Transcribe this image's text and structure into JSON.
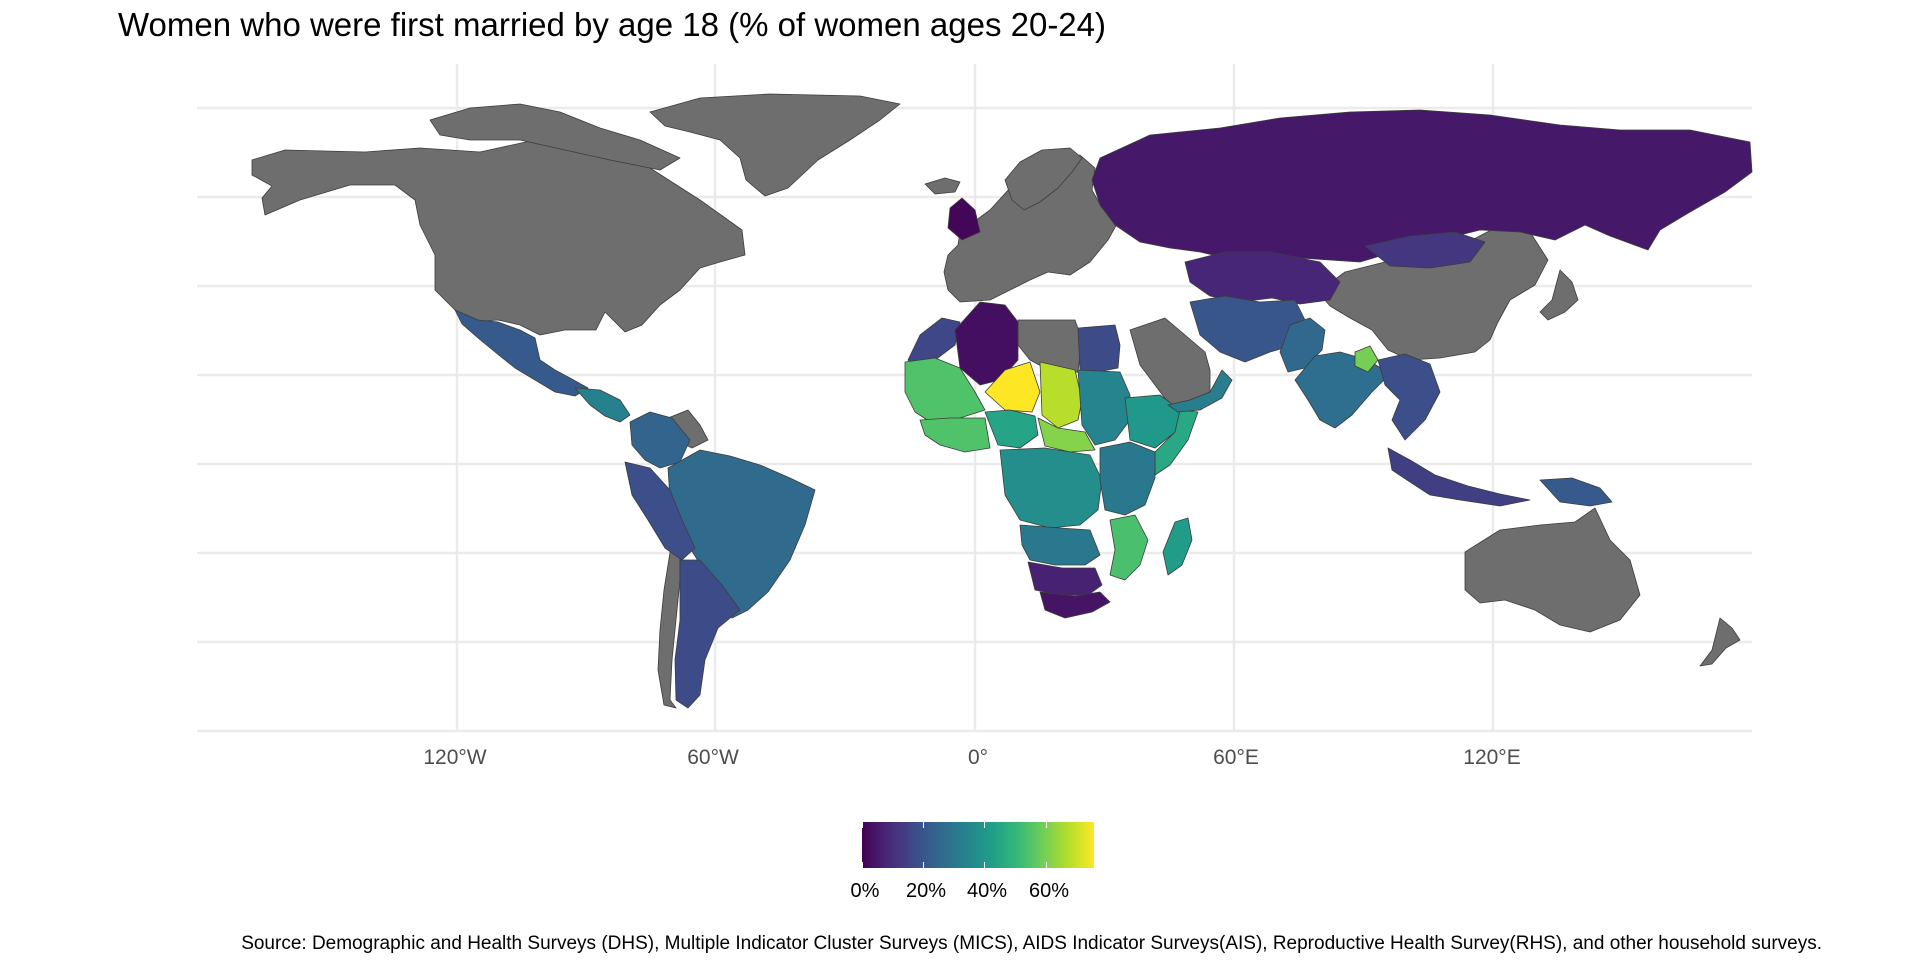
{
  "chart_data": {
    "type": "choropleth-map",
    "title": "Women who were first married by age 18 (% of women ages 20-24)",
    "x_ticks": [
      "120°W",
      "60°W",
      "0°",
      "60°E",
      "120°E"
    ],
    "legend": {
      "labels": [
        "0%",
        "20%",
        "40%",
        "60%"
      ],
      "colormap": "viridis",
      "range": [
        0,
        75
      ]
    },
    "no_data_color": "#6e6e6e",
    "regions": [
      {
        "name": "Mexico",
        "value": 21
      },
      {
        "name": "Central America",
        "value": 33
      },
      {
        "name": "Colombia/Venezuela",
        "value": 24
      },
      {
        "name": "Brazil",
        "value": 26
      },
      {
        "name": "Peru/Bolivia",
        "value": 18
      },
      {
        "name": "Argentina/Paraguay",
        "value": 17
      },
      {
        "name": "Russia",
        "value": 5
      },
      {
        "name": "Central Asia",
        "value": 8
      },
      {
        "name": "Mongolia",
        "value": 12
      },
      {
        "name": "Iran/Afghanistan",
        "value": 20
      },
      {
        "name": "Pakistan",
        "value": 25
      },
      {
        "name": "India",
        "value": 27
      },
      {
        "name": "Bangladesh",
        "value": 59
      },
      {
        "name": "Southeast Asia",
        "value": 18
      },
      {
        "name": "Indonesia",
        "value": 14
      },
      {
        "name": "Papua New Guinea",
        "value": 21
      },
      {
        "name": "Algeria",
        "value": 3
      },
      {
        "name": "Morocco",
        "value": 16
      },
      {
        "name": "Egypt",
        "value": 17
      },
      {
        "name": "Mali",
        "value": 54
      },
      {
        "name": "Niger",
        "value": 76
      },
      {
        "name": "Chad",
        "value": 67
      },
      {
        "name": "Sudan",
        "value": 34
      },
      {
        "name": "Nigeria",
        "value": 44
      },
      {
        "name": "Central African Republic",
        "value": 61
      },
      {
        "name": "Ethiopia",
        "value": 40
      },
      {
        "name": "Somalia",
        "value": 45
      },
      {
        "name": "DR Congo",
        "value": 37
      },
      {
        "name": "East Africa",
        "value": 30
      },
      {
        "name": "Mozambique",
        "value": 53
      },
      {
        "name": "Madagascar",
        "value": 41
      },
      {
        "name": "Angola/Zambia",
        "value": 30
      },
      {
        "name": "Namibia/Botswana",
        "value": 7
      },
      {
        "name": "South Africa",
        "value": 4
      },
      {
        "name": "Yemen/Oman",
        "value": 32
      },
      {
        "name": "United Kingdom",
        "value": 1
      }
    ]
  },
  "caption": "Source: Demographic and Health Surveys (DHS), Multiple Indicator Cluster Surveys (MICS), AIDS Indicator Surveys(AIS), Reproductive Health Survey(RHS), and other household surveys."
}
